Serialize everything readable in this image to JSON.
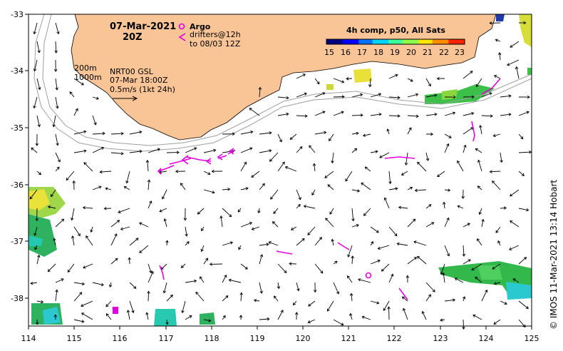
{
  "map": {
    "date": "07-Mar-2021",
    "time": "20Z",
    "legend_argo": "Argo",
    "legend_drifters_1": "drifters@12h",
    "legend_drifters_2": "to 08/03 12Z",
    "depth_200": "200m",
    "depth_1000": "1000m",
    "product": "NRT00 GSL",
    "product_time": "07-Mar 18:00Z",
    "speed_scale": "0.5m/s (1kt 24h)",
    "sst_title": "4h comp, p50, All Sats",
    "sst_ticks": [
      "15",
      "16",
      "17",
      "18",
      "19",
      "20",
      "21",
      "22",
      "23"
    ],
    "credit": "© IMOS 11-Mar-2021 13:14 Hobart",
    "lon_ticks": [
      "114",
      "115",
      "116",
      "117",
      "118",
      "119",
      "120",
      "121",
      "122",
      "123",
      "124",
      "125"
    ],
    "lat_ticks": [
      "-33",
      "-34",
      "-35",
      "-36",
      "-37",
      "-38"
    ],
    "colors": {
      "land": "#f9c596",
      "argo": "#e000e0",
      "drifter": "#e000e0",
      "isobath": "#a0a0a0",
      "arrow": "#000000"
    }
  }
}
